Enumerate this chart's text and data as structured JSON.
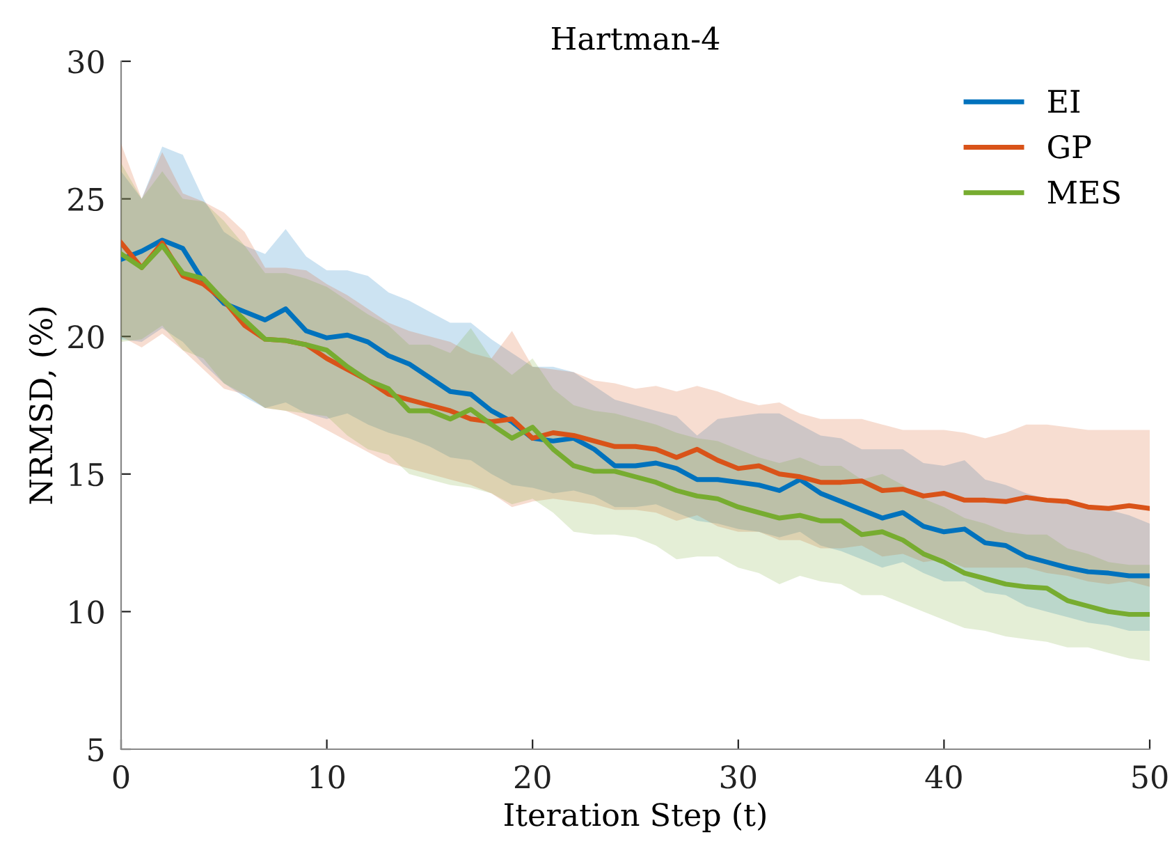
{
  "chart_data": {
    "type": "line",
    "title": "Hartman-4",
    "xlabel": "Iteration Step (t)",
    "ylabel": "NRMSD, (%)",
    "x": [
      0,
      1,
      2,
      3,
      4,
      5,
      6,
      7,
      8,
      9,
      10,
      11,
      12,
      13,
      14,
      15,
      16,
      17,
      18,
      19,
      20,
      21,
      22,
      23,
      24,
      25,
      26,
      27,
      28,
      29,
      30,
      31,
      32,
      33,
      34,
      35,
      36,
      37,
      38,
      39,
      40,
      41,
      42,
      43,
      44,
      45,
      46,
      47,
      48,
      49,
      50
    ],
    "series": [
      {
        "name": "EI",
        "color": "#0072bd",
        "values": [
          22.8,
          23.1,
          23.5,
          23.2,
          22.0,
          21.2,
          20.9,
          20.6,
          21.0,
          20.2,
          19.95,
          20.05,
          19.8,
          19.3,
          19.0,
          18.5,
          18.0,
          17.9,
          17.3,
          16.9,
          16.3,
          16.2,
          16.3,
          15.9,
          15.3,
          15.3,
          15.4,
          15.2,
          14.8,
          14.8,
          14.7,
          14.6,
          14.4,
          14.8,
          14.3,
          14.0,
          13.7,
          13.4,
          13.6,
          13.1,
          12.9,
          13.0,
          12.5,
          12.4,
          12.0,
          11.8,
          11.6,
          11.45,
          11.4,
          11.3,
          11.3
        ],
        "lower": [
          19.9,
          19.8,
          20.3,
          19.8,
          19.0,
          18.3,
          17.8,
          17.4,
          17.6,
          17.2,
          17.0,
          17.2,
          16.8,
          16.5,
          16.3,
          16.0,
          15.6,
          15.5,
          15.0,
          14.6,
          14.5,
          14.3,
          14.4,
          14.2,
          13.8,
          13.8,
          13.9,
          13.6,
          13.3,
          13.2,
          13.0,
          12.9,
          12.7,
          12.9,
          12.4,
          12.2,
          11.9,
          11.6,
          11.8,
          11.4,
          11.1,
          11.1,
          10.7,
          10.6,
          10.2,
          10.0,
          9.8,
          9.6,
          9.5,
          9.3,
          9.3
        ],
        "upper": [
          26.0,
          25.0,
          26.9,
          26.6,
          25.0,
          23.8,
          23.3,
          23.0,
          23.9,
          22.9,
          22.4,
          22.4,
          22.2,
          21.6,
          21.3,
          20.9,
          20.5,
          20.5,
          19.9,
          19.4,
          18.9,
          18.9,
          18.7,
          18.2,
          17.7,
          17.5,
          17.3,
          17.1,
          16.4,
          17.0,
          17.1,
          17.2,
          17.2,
          16.8,
          16.4,
          16.3,
          15.9,
          15.9,
          15.9,
          15.4,
          15.3,
          15.5,
          14.8,
          14.6,
          14.3,
          14.1,
          13.9,
          13.8,
          13.7,
          13.5,
          13.2
        ]
      },
      {
        "name": "GP",
        "color": "#d95319",
        "values": [
          23.4,
          22.5,
          23.4,
          22.2,
          21.9,
          21.3,
          20.4,
          19.9,
          19.85,
          19.7,
          19.2,
          18.8,
          18.4,
          17.9,
          17.7,
          17.5,
          17.3,
          17.0,
          16.9,
          17.0,
          16.3,
          16.5,
          16.4,
          16.2,
          16.0,
          16.0,
          15.9,
          15.6,
          15.9,
          15.5,
          15.2,
          15.3,
          15.0,
          14.9,
          14.7,
          14.7,
          14.75,
          14.4,
          14.45,
          14.2,
          14.3,
          14.05,
          14.05,
          14.0,
          14.15,
          14.05,
          14.0,
          13.8,
          13.75,
          13.85,
          13.75
        ],
        "lower": [
          20.0,
          19.6,
          20.1,
          19.5,
          18.8,
          18.1,
          17.9,
          17.4,
          17.3,
          17.0,
          16.6,
          16.2,
          15.8,
          15.4,
          15.2,
          15.0,
          14.8,
          14.6,
          14.3,
          13.8,
          14.0,
          14.1,
          14.0,
          13.9,
          13.7,
          13.7,
          13.6,
          13.3,
          13.5,
          13.1,
          12.9,
          12.9,
          12.6,
          12.6,
          12.3,
          12.3,
          12.4,
          12.0,
          12.1,
          11.8,
          11.9,
          11.6,
          11.6,
          11.6,
          11.6,
          11.4,
          11.3,
          11.1,
          11.0,
          11.1,
          10.9
        ],
        "upper": [
          27.0,
          25.0,
          26.7,
          25.2,
          24.9,
          24.5,
          23.8,
          22.5,
          22.5,
          22.4,
          21.9,
          21.5,
          21.0,
          20.5,
          20.2,
          20.0,
          19.8,
          19.4,
          19.2,
          20.2,
          18.9,
          18.8,
          18.7,
          18.4,
          18.3,
          18.1,
          18.2,
          18.0,
          18.2,
          18.0,
          17.7,
          17.5,
          17.6,
          17.2,
          17.0,
          17.0,
          17.0,
          16.8,
          16.6,
          16.6,
          16.6,
          16.5,
          16.3,
          16.5,
          16.8,
          16.8,
          16.7,
          16.6,
          16.6,
          16.6,
          16.6
        ]
      },
      {
        "name": "MES",
        "color": "#77ac30",
        "values": [
          23.0,
          22.5,
          23.3,
          22.3,
          22.1,
          21.3,
          20.6,
          19.9,
          19.85,
          19.7,
          19.5,
          18.9,
          18.4,
          18.1,
          17.3,
          17.3,
          17.0,
          17.35,
          16.8,
          16.3,
          16.7,
          15.9,
          15.3,
          15.1,
          15.1,
          14.9,
          14.7,
          14.4,
          14.2,
          14.1,
          13.8,
          13.6,
          13.4,
          13.5,
          13.3,
          13.3,
          12.8,
          12.9,
          12.6,
          12.1,
          11.8,
          11.4,
          11.2,
          11.0,
          10.9,
          10.85,
          10.4,
          10.2,
          10.0,
          9.9,
          9.9
        ],
        "lower": [
          19.8,
          19.9,
          20.4,
          19.5,
          19.2,
          18.3,
          17.9,
          17.4,
          17.3,
          17.2,
          17.1,
          16.4,
          15.9,
          15.7,
          15.0,
          14.8,
          14.6,
          14.5,
          14.3,
          13.9,
          14.1,
          13.6,
          12.9,
          12.8,
          12.8,
          12.7,
          12.4,
          11.9,
          12.0,
          12.0,
          11.6,
          11.4,
          11.0,
          11.3,
          11.1,
          11.0,
          10.6,
          10.6,
          10.3,
          10.0,
          9.7,
          9.4,
          9.3,
          9.1,
          9.0,
          8.9,
          8.7,
          8.7,
          8.5,
          8.3,
          8.2
        ],
        "upper": [
          26.3,
          25.0,
          26.0,
          25.0,
          24.9,
          24.2,
          23.3,
          22.3,
          22.3,
          22.1,
          21.8,
          21.3,
          20.8,
          20.4,
          19.7,
          19.7,
          19.4,
          20.3,
          19.2,
          18.6,
          19.2,
          18.1,
          17.5,
          17.3,
          17.2,
          17.0,
          16.8,
          16.5,
          16.3,
          16.2,
          15.9,
          15.6,
          15.4,
          15.6,
          15.3,
          15.3,
          14.8,
          15.0,
          14.6,
          14.1,
          13.8,
          13.4,
          13.2,
          12.9,
          12.8,
          12.8,
          12.3,
          12.1,
          11.8,
          11.7,
          11.7
        ]
      }
    ],
    "xlim": [
      0,
      50
    ],
    "xticks": [
      0,
      10,
      20,
      30,
      40,
      50
    ],
    "ylim": [
      5,
      30
    ],
    "yticks": [
      5,
      10,
      15,
      20,
      25,
      30
    ],
    "legend": "top right",
    "grid": false,
    "marker": "none",
    "line_style": "solid"
  }
}
